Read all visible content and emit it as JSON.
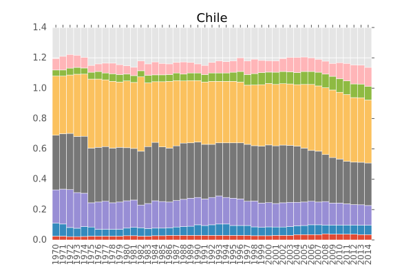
{
  "chart_data": {
    "type": "bar",
    "stacked": true,
    "title": "Chile",
    "xlabel": "",
    "ylabel": "",
    "ylim": [
      0,
      1.4
    ],
    "yticks": [
      "0.0",
      "0.2",
      "0.4",
      "0.6",
      "0.8",
      "1.0",
      "1.2",
      "1.4"
    ],
    "grid": true,
    "legend": "none",
    "categories": [
      "1970",
      "1971",
      "1972",
      "1973",
      "1974",
      "1975",
      "1976",
      "1977",
      "1978",
      "1979",
      "1980",
      "1981",
      "1982",
      "1983",
      "1984",
      "1985",
      "1986",
      "1987",
      "1988",
      "1989",
      "1990",
      "1991",
      "1992",
      "1993",
      "1994",
      "1995",
      "1996",
      "1997",
      "1998",
      "1999",
      "2000",
      "2001",
      "2002",
      "2003",
      "2004",
      "2005",
      "2006",
      "2007",
      "2008",
      "2009",
      "2010",
      "2011",
      "2012",
      "2013",
      "2014"
    ],
    "series_colors": [
      "#E24A33",
      "#348ABD",
      "#988ED5",
      "#777777",
      "#FBC15E",
      "#8EBA42",
      "#FFB5B8"
    ],
    "series": [
      {
        "values": [
          0.025,
          0.025,
          0.022,
          0.022,
          0.023,
          0.025,
          0.025,
          0.025,
          0.025,
          0.025,
          0.028,
          0.028,
          0.025,
          0.025,
          0.028,
          0.028,
          0.03,
          0.03,
          0.03,
          0.03,
          0.03,
          0.03,
          0.03,
          0.03,
          0.03,
          0.03,
          0.03,
          0.03,
          0.028,
          0.028,
          0.028,
          0.03,
          0.03,
          0.03,
          0.035,
          0.035,
          0.035,
          0.035,
          0.04,
          0.038,
          0.038,
          0.038,
          0.038,
          0.035,
          0.035
        ]
      },
      {
        "values": [
          0.085,
          0.08,
          0.06,
          0.055,
          0.065,
          0.06,
          0.045,
          0.045,
          0.045,
          0.045,
          0.05,
          0.055,
          0.055,
          0.05,
          0.05,
          0.05,
          0.05,
          0.055,
          0.058,
          0.06,
          0.07,
          0.065,
          0.07,
          0.075,
          0.075,
          0.065,
          0.065,
          0.065,
          0.058,
          0.055,
          0.058,
          0.055,
          0.055,
          0.058,
          0.058,
          0.06,
          0.065,
          0.065,
          0.058,
          0.06,
          0.06,
          0.06,
          0.06,
          0.062,
          0.062
        ]
      },
      {
        "values": [
          0.22,
          0.23,
          0.25,
          0.235,
          0.22,
          0.16,
          0.18,
          0.185,
          0.175,
          0.18,
          0.18,
          0.18,
          0.15,
          0.165,
          0.18,
          0.175,
          0.17,
          0.175,
          0.18,
          0.185,
          0.18,
          0.175,
          0.18,
          0.185,
          0.175,
          0.18,
          0.175,
          0.16,
          0.17,
          0.16,
          0.16,
          0.155,
          0.16,
          0.16,
          0.155,
          0.155,
          0.155,
          0.15,
          0.155,
          0.145,
          0.145,
          0.14,
          0.135,
          0.135,
          0.13
        ]
      },
      {
        "values": [
          0.36,
          0.365,
          0.37,
          0.37,
          0.375,
          0.36,
          0.36,
          0.36,
          0.36,
          0.36,
          0.35,
          0.34,
          0.355,
          0.375,
          0.385,
          0.36,
          0.355,
          0.36,
          0.37,
          0.365,
          0.365,
          0.36,
          0.35,
          0.35,
          0.36,
          0.365,
          0.37,
          0.375,
          0.365,
          0.375,
          0.38,
          0.38,
          0.38,
          0.375,
          0.37,
          0.355,
          0.335,
          0.335,
          0.31,
          0.3,
          0.29,
          0.28,
          0.28,
          0.28,
          0.28
        ]
      },
      {
        "values": [
          0.39,
          0.38,
          0.385,
          0.41,
          0.41,
          0.455,
          0.45,
          0.44,
          0.44,
          0.43,
          0.44,
          0.435,
          0.49,
          0.42,
          0.4,
          0.43,
          0.44,
          0.43,
          0.41,
          0.41,
          0.405,
          0.41,
          0.415,
          0.405,
          0.405,
          0.405,
          0.4,
          0.39,
          0.4,
          0.405,
          0.405,
          0.405,
          0.405,
          0.405,
          0.405,
          0.42,
          0.435,
          0.43,
          0.44,
          0.445,
          0.44,
          0.44,
          0.425,
          0.425,
          0.415
        ]
      },
      {
        "values": [
          0.04,
          0.04,
          0.045,
          0.045,
          0.04,
          0.045,
          0.05,
          0.045,
          0.05,
          0.05,
          0.045,
          0.045,
          0.04,
          0.05,
          0.045,
          0.045,
          0.045,
          0.05,
          0.045,
          0.05,
          0.05,
          0.05,
          0.055,
          0.055,
          0.055,
          0.06,
          0.07,
          0.07,
          0.075,
          0.08,
          0.075,
          0.08,
          0.08,
          0.08,
          0.08,
          0.085,
          0.085,
          0.09,
          0.09,
          0.09,
          0.09,
          0.09,
          0.09,
          0.09,
          0.09
        ]
      },
      {
        "values": [
          0.075,
          0.09,
          0.09,
          0.08,
          0.07,
          0.045,
          0.05,
          0.065,
          0.07,
          0.065,
          0.055,
          0.055,
          0.065,
          0.075,
          0.085,
          0.075,
          0.07,
          0.07,
          0.08,
          0.07,
          0.06,
          0.06,
          0.07,
          0.08,
          0.075,
          0.075,
          0.09,
          0.09,
          0.095,
          0.08,
          0.075,
          0.075,
          0.085,
          0.095,
          0.1,
          0.095,
          0.09,
          0.085,
          0.085,
          0.085,
          0.105,
          0.115,
          0.125,
          0.125,
          0.125
        ]
      }
    ]
  }
}
